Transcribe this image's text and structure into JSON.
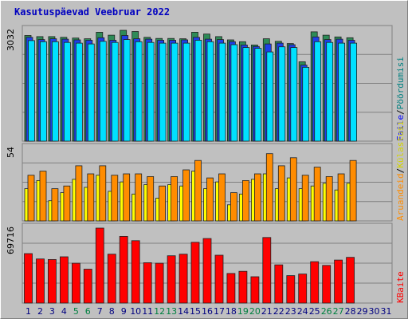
{
  "chart_data": {
    "type": "bar",
    "title": "Kasutuspäevad Veebruar 2022",
    "days": [
      "1",
      "2",
      "3",
      "4",
      "5",
      "6",
      "7",
      "8",
      "9",
      "10",
      "11",
      "12",
      "13",
      "14",
      "15",
      "16",
      "17",
      "18",
      "19",
      "20",
      "21",
      "22",
      "23",
      "24",
      "25",
      "26",
      "27",
      "28",
      "29",
      "30",
      "31"
    ],
    "weekend_days": [
      5,
      6,
      12,
      13,
      19,
      20,
      26,
      27
    ],
    "panels": [
      {
        "id": "top",
        "max_label": "3032",
        "ylim": [
          0,
          3032
        ],
        "series": [
          {
            "values": [
              2890,
              2860,
              2860,
              2840,
              2820,
              2800,
              2980,
              2900,
              3032,
              3000,
              2840,
              2810,
              2810,
              2800,
              2980,
              2930,
              2860,
              2770,
              2720,
              2630,
              2800,
              2730,
              2670,
              2170,
              2990,
              2900,
              2850,
              2830
            ]
          },
          {
            "values": [
              2840,
              2780,
              2800,
              2790,
              2770,
              2760,
              2830,
              2760,
              2890,
              2800,
              2790,
              2760,
              2760,
              2770,
              2840,
              2790,
              2780,
              2720,
              2630,
              2590,
              2660,
              2680,
              2640,
              2080,
              2850,
              2780,
              2790,
              2760
            ]
          },
          {
            "values": [
              2750,
              2720,
              2720,
              2700,
              2680,
              2660,
              2730,
              2700,
              2780,
              2720,
              2700,
              2680,
              2680,
              2680,
              2760,
              2720,
              2680,
              2640,
              2560,
              2540,
              2440,
              2580,
              2560,
              2020,
              2720,
              2700,
              2680,
              2680
            ]
          }
        ],
        "legend": [
          "Faile",
          "Pöördumisi"
        ]
      },
      {
        "id": "middle",
        "max_label": "54",
        "ylim": [
          0,
          54
        ],
        "series": [
          {
            "values": [
              24,
              30,
              15,
              21,
              31,
              25,
              34,
              22,
              29,
              20,
              27,
              17,
              27,
              26,
              37,
              24,
              29,
              12,
              20,
              31,
              35,
              24,
              32,
              24,
              26,
              28,
              23,
              28
            ]
          },
          {
            "values": [
              34,
              37,
              24,
              26,
              41,
              35,
              41,
              34,
              35,
              35,
              33,
              26,
              33,
              38,
              45,
              32,
              35,
              21,
              30,
              35,
              50,
              41,
              47,
              34,
              40,
              33,
              35,
              45
            ]
          }
        ],
        "legend": [
          "Külastusi",
          "Aruandeid"
        ]
      },
      {
        "id": "bottom",
        "max_label": "69716",
        "ylim": [
          0,
          69716
        ],
        "series": [
          {
            "values": [
              46000,
              41000,
              40500,
              43000,
              37000,
              31500,
              69716,
              45500,
              62000,
              58000,
              37500,
              37000,
              44000,
              45500,
              56500,
              60000,
              44500,
              27500,
              29500,
              24500,
              61000,
              35500,
              25500,
              27000,
              38500,
              35000,
              40000,
              42500
            ]
          }
        ],
        "legend": [
          "KBaite"
        ]
      }
    ]
  },
  "colors": {
    "title": "#0000c0",
    "weekday_label": "#000080",
    "weekend_label": "#008040",
    "top_back": "#2e8b57",
    "top_mid": "#1e40e8",
    "top_front": "#00e0ff",
    "mid_back": "#ff8c00",
    "mid_front": "#ffff00",
    "bottom": "#ff0000",
    "legend_pageviews": "#008080",
    "legend_files": "#0000ff",
    "legend_visits": "#ffff00",
    "legend_reports": "#ff8c00",
    "legend_kb": "#ff0000"
  },
  "legend_separator": "/"
}
